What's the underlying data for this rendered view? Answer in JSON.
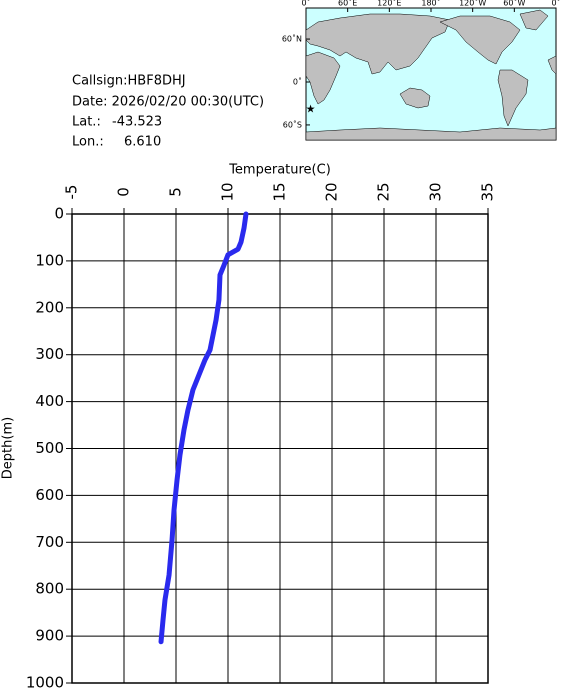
{
  "info": {
    "callsign": "Callsign:HBF8DHJ",
    "date": "Date:  2026/02/20 00:30(UTC)",
    "lat_label": "Lat.:",
    "lat": -43.523,
    "lon_label": "Lon.:",
    "lon": {
      "value": 6.61,
      "label": "6.610"
    }
  },
  "map": {
    "lon_ticks": [
      {
        "value": 0,
        "label": "0˚"
      },
      {
        "value": 60,
        "label": "60˚E"
      },
      {
        "value": 120,
        "label": "120˚E"
      },
      {
        "value": 180,
        "label": "180˚"
      },
      {
        "value": 240,
        "label": "120˚W"
      },
      {
        "value": 300,
        "label": "60˚W"
      },
      {
        "value": 360,
        "label": "0˚"
      }
    ],
    "lat_ticks": [
      {
        "value": 60,
        "label": "60˚N"
      },
      {
        "value": 0,
        "label": "0˚"
      },
      {
        "value": -60,
        "label": "60˚S"
      }
    ],
    "marker_color": "#ff0000"
  },
  "chart_data": {
    "type": "line",
    "xlabel": "Temperature(C)",
    "ylabel": "Depth(m)",
    "x": [
      11.73,
      11.54,
      11.25,
      10.96,
      10.0,
      9.6,
      9.23,
      9.13,
      8.85,
      8.56,
      8.27,
      7.79,
      7.21,
      6.63,
      6.15,
      5.77,
      5.38,
      5.1,
      4.81,
      4.62,
      4.33,
      3.94,
      3.75,
      3.56
    ],
    "values": [
      0,
      30,
      60,
      75,
      87,
      110,
      130,
      183,
      226,
      258,
      290,
      311,
      343,
      375,
      418,
      460,
      514,
      567,
      631,
      695,
      770,
      823,
      866,
      912
    ],
    "color": "#2a2aee",
    "xlim": [
      -5,
      35
    ],
    "xticks": [
      -5,
      0,
      5,
      10,
      15,
      20,
      25,
      30,
      35
    ],
    "ylim": [
      0,
      1000
    ],
    "yticks": [
      0,
      100,
      200,
      300,
      400,
      500,
      600,
      700,
      800,
      900,
      1000
    ],
    "y_inverted": true,
    "grid": true
  }
}
